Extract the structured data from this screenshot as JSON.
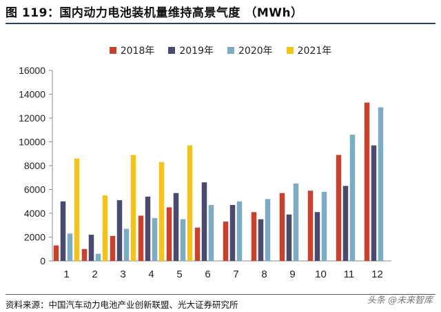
{
  "title": "图 119：国内动力电池装机量维持高景气度 （MWh）",
  "source": "资料来源：中国汽车动力电池产业创新联盟、光大证券研究所",
  "watermark": "头条 @未来智库",
  "chart_data": {
    "type": "bar",
    "title": "国内动力电池装机量维持高景气度 （MWh）",
    "xlabel": "",
    "ylabel": "",
    "ylim": [
      0,
      16000
    ],
    "yticks": [
      0,
      2000,
      4000,
      6000,
      8000,
      10000,
      12000,
      14000,
      16000
    ],
    "categories": [
      "1",
      "2",
      "3",
      "4",
      "5",
      "6",
      "7",
      "8",
      "9",
      "10",
      "11",
      "12"
    ],
    "legend_position": "top-center",
    "series": [
      {
        "name": "2018年",
        "color": "#c8412c",
        "values": [
          1300,
          1000,
          2100,
          3800,
          4500,
          2800,
          3300,
          4100,
          5700,
          5900,
          8900,
          13300
        ]
      },
      {
        "name": "2019年",
        "color": "#4a4a6e",
        "values": [
          5000,
          2200,
          5100,
          5400,
          5700,
          6600,
          4700,
          3500,
          3900,
          4100,
          6300,
          9700
        ]
      },
      {
        "name": "2020年",
        "color": "#7cacc4",
        "values": [
          2300,
          600,
          2700,
          3600,
          3500,
          4700,
          5000,
          5200,
          6500,
          5800,
          10600,
          12900
        ]
      },
      {
        "name": "2021年",
        "color": "#f3c21b",
        "values": [
          8600,
          5500,
          8900,
          8300,
          9700,
          null,
          null,
          null,
          null,
          null,
          null,
          null
        ]
      }
    ]
  }
}
